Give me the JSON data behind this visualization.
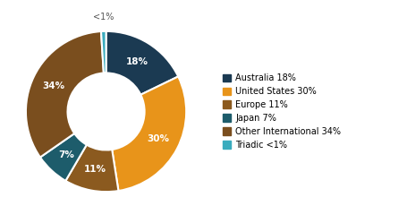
{
  "labels": [
    "Australia",
    "United States",
    "Europe",
    "Japan",
    "Other International",
    "Triadic"
  ],
  "values": [
    18,
    30,
    11,
    7,
    34,
    1
  ],
  "colors": [
    "#1b3a52",
    "#e8941a",
    "#8b5a1f",
    "#1d5c6b",
    "#7a4e1e",
    "#3aacbe"
  ],
  "autopct_labels": [
    "18%",
    "30%",
    "11%",
    "7%",
    "34%",
    "<1%"
  ],
  "startangle": 90,
  "background_color": "#ffffff",
  "legend_labels": [
    "Australia 18%",
    "United States 30%",
    "Europe 11%",
    "Japan 7%",
    "Other International 34%",
    "Triadic <1%"
  ],
  "label_outside": [
    5
  ],
  "outside_label_r": 1.15
}
